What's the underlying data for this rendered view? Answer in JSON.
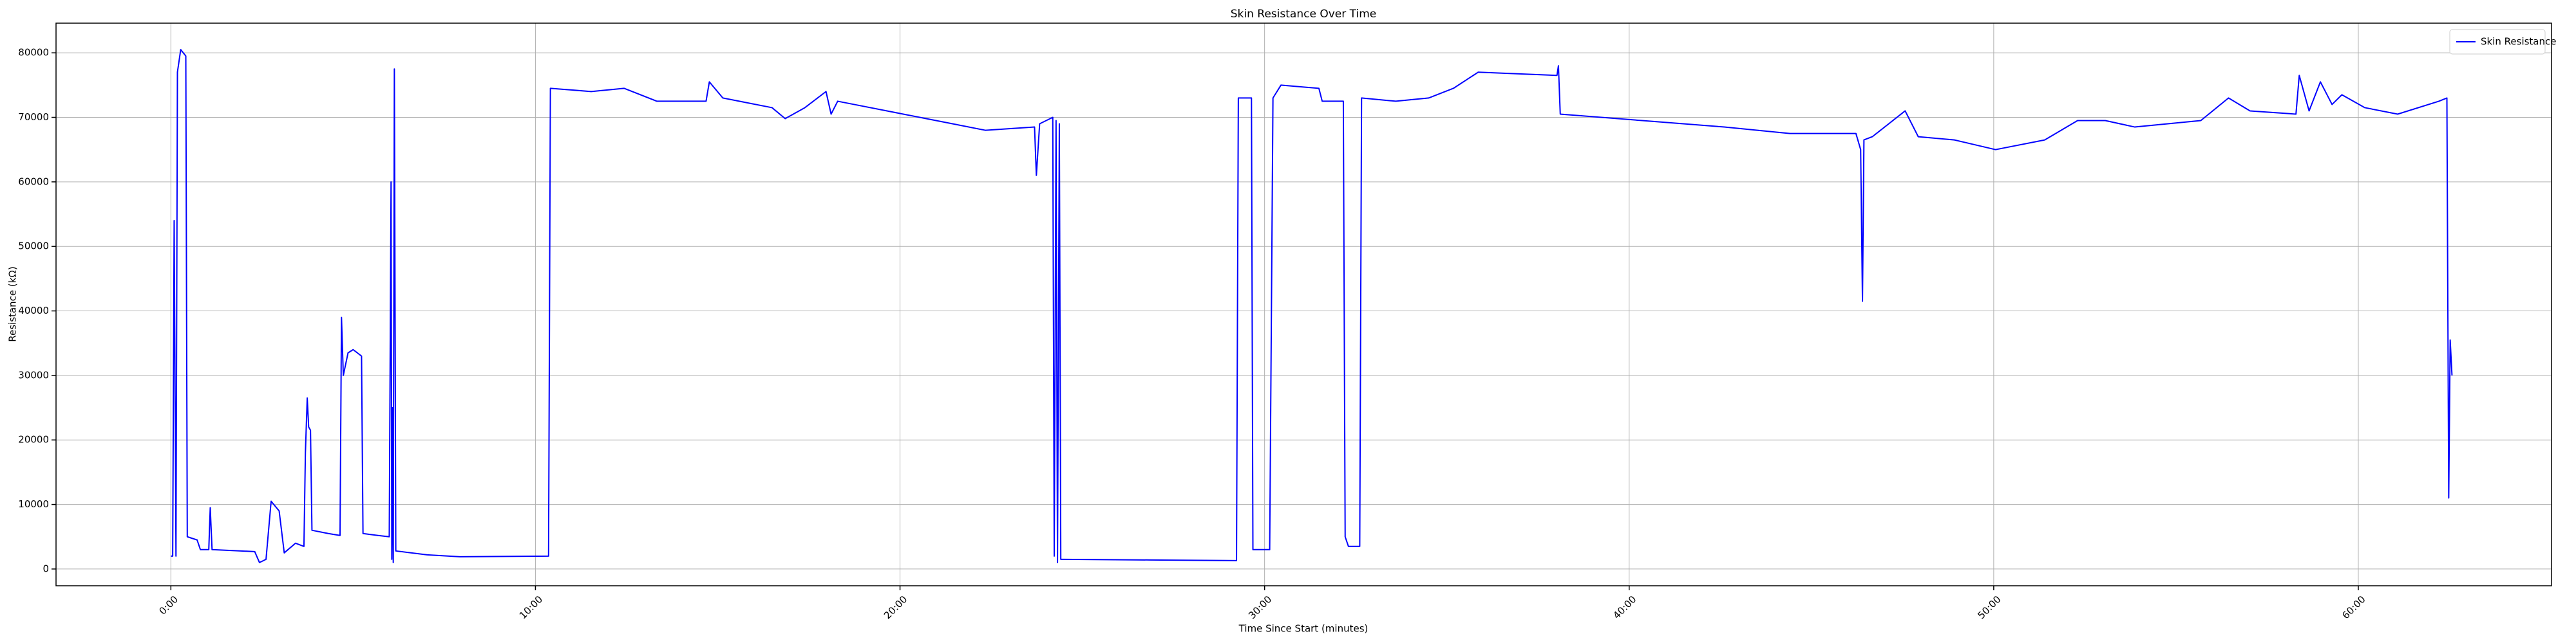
{
  "chart_data": {
    "type": "line",
    "title": "Skin Resistance Over Time",
    "x_label": "Time Since Start (minutes)",
    "y_label": "Resistance (kΩ)",
    "x": [
      0.0,
      0.05,
      0.09,
      0.14,
      0.18,
      0.27,
      0.41,
      0.45,
      0.72,
      0.81,
      1.04,
      1.08,
      1.13,
      2.3,
      2.43,
      2.61,
      2.75,
      2.97,
      3.11,
      3.42,
      3.65,
      3.69,
      3.74,
      3.78,
      3.83,
      3.87,
      4.32,
      4.64,
      4.68,
      4.73,
      4.86,
      5.0,
      5.23,
      5.27,
      5.68,
      5.99,
      6.04,
      6.06,
      6.08,
      6.1,
      6.13,
      6.17,
      7.03,
      7.93,
      10.36,
      10.41,
      11.53,
      12.43,
      13.33,
      14.68,
      14.77,
      15.14,
      16.49,
      16.85,
      17.39,
      17.97,
      18.11,
      18.29,
      18.74,
      20.09,
      21.44,
      22.34,
      23.69,
      23.74,
      23.83,
      24.19,
      24.23,
      24.28,
      24.32,
      24.37,
      24.41,
      26.85,
      29.23,
      29.28,
      29.64,
      29.68,
      30.14,
      30.23,
      30.45,
      31.49,
      31.58,
      32.16,
      32.21,
      32.3,
      32.61,
      32.66,
      33.6,
      34.5,
      35.18,
      35.86,
      38.02,
      38.06,
      38.11,
      40.36,
      42.61,
      44.41,
      46.22,
      46.35,
      46.4,
      46.44,
      46.67,
      47.57,
      47.93,
      48.92,
      50.05,
      51.4,
      52.3,
      53.06,
      53.87,
      55.68,
      56.44,
      57.03,
      58.29,
      58.38,
      58.65,
      58.96,
      59.28,
      59.55,
      60.18,
      61.08,
      62.21,
      62.43,
      62.48,
      62.52,
      62.57
    ],
    "series": [
      {
        "name": "Skin Resistance",
        "color": "#0000ff",
        "values": [
          2000,
          2000,
          54000,
          2000,
          77000,
          80500,
          79500,
          5000,
          4500,
          3000,
          3000,
          9500,
          3000,
          2700,
          1000,
          1500,
          10500,
          9000,
          2500,
          4000,
          3500,
          18000,
          26500,
          22000,
          21500,
          6000,
          5500,
          5200,
          39000,
          30000,
          33500,
          34000,
          33000,
          5500,
          5200,
          5000,
          60000,
          1500,
          25000,
          1000,
          77500,
          2800,
          2200,
          1900,
          2000,
          74500,
          74000,
          74500,
          72500,
          72500,
          75500,
          73000,
          71500,
          69800,
          71500,
          74000,
          70500,
          72500,
          72000,
          70500,
          69000,
          68000,
          68500,
          61000,
          69000,
          70000,
          2000,
          69500,
          1000,
          69000,
          1500,
          1400,
          1300,
          73000,
          73000,
          3000,
          3000,
          73000,
          75000,
          74500,
          72500,
          72500,
          5000,
          3500,
          3500,
          73000,
          72500,
          73000,
          74500,
          77000,
          76500,
          78000,
          70500,
          69500,
          68500,
          67500,
          67500,
          65000,
          41500,
          66500,
          67000,
          71000,
          67000,
          66500,
          65000,
          66500,
          69500,
          69500,
          68500,
          69500,
          73000,
          71000,
          70500,
          76500,
          71000,
          75500,
          72000,
          73500,
          71500,
          70500,
          72500,
          73000,
          11000,
          35500,
          30000
        ]
      }
    ],
    "xlim": [
      -3.15,
      65.3
    ],
    "ylim": [
      -2600,
      84600
    ],
    "xticks": [
      {
        "value": 0,
        "label": "0:00"
      },
      {
        "value": 10,
        "label": "10:00"
      },
      {
        "value": 20,
        "label": "20:00"
      },
      {
        "value": 30,
        "label": "30:00"
      },
      {
        "value": 40,
        "label": "40:00"
      },
      {
        "value": 50,
        "label": "50:00"
      },
      {
        "value": 60,
        "label": "60:00"
      }
    ],
    "yticks": [
      0,
      10000,
      20000,
      30000,
      40000,
      50000,
      60000,
      70000,
      80000
    ],
    "grid": true,
    "legend": "upper right"
  }
}
